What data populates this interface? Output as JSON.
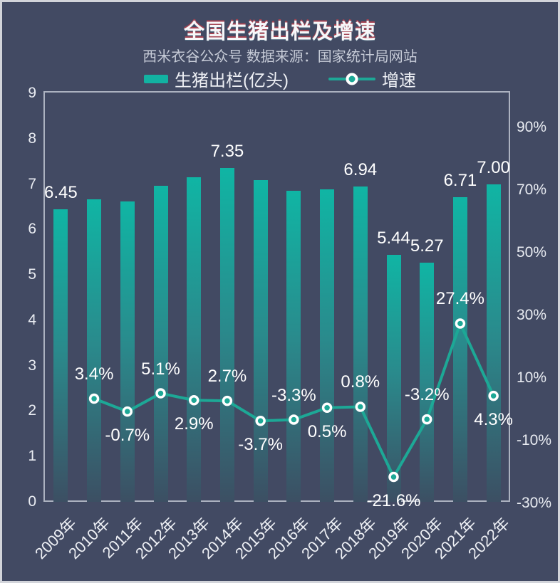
{
  "title": "全国生猪出栏及增速",
  "subtitle": "西米衣谷公众号 数据来源：国家统计局网站",
  "legend": {
    "bar_label": "生猪出栏(亿头)",
    "line_label": "增速"
  },
  "colors": {
    "background": "#424a63",
    "canvas_border": "#d2d4da",
    "plot_border": "#bec4d0",
    "bar_gradient_top": "#10b5a4",
    "bar_gradient_bottom": "#3c4f63",
    "line": "#1da896",
    "marker_fill": "#1da896",
    "marker_ring": "#ffffff",
    "title_text": "#f7f7f9",
    "subtitle_text": "#c6cbd7",
    "axis_text": "#e9ecf2",
    "value_label_text": "#ffffff"
  },
  "chart_data": {
    "type": "bar",
    "combo": "bar+line",
    "title": "全国生猪出栏及增速",
    "subtitle": "西米衣谷公众号 数据来源：国家统计局网站",
    "categories": [
      "2009年",
      "2010年",
      "2011年",
      "2012年",
      "2013年",
      "2014年",
      "2015年",
      "2016年",
      "2017年",
      "2018年",
      "2019年",
      "2020年",
      "2021年",
      "2022年"
    ],
    "series": [
      {
        "name": "生猪出栏(亿头)",
        "type": "bar",
        "axis": "left",
        "values": [
          6.45,
          6.67,
          6.62,
          6.96,
          7.15,
          7.35,
          7.08,
          6.85,
          6.88,
          6.94,
          5.44,
          5.27,
          6.71,
          7.0
        ],
        "shown_labels": [
          "6.45",
          "",
          "",
          "",
          "",
          "7.35",
          "",
          "",
          "",
          "6.94",
          "5.44",
          "5.27",
          "6.71",
          "7.00"
        ]
      },
      {
        "name": "增速",
        "type": "line",
        "axis": "right",
        "values": [
          null,
          3.4,
          -0.7,
          5.1,
          2.9,
          2.7,
          -3.7,
          -3.3,
          0.5,
          0.8,
          -21.6,
          -3.2,
          27.4,
          4.3
        ],
        "shown_labels": [
          "",
          "3.4%",
          "-0.7%",
          "5.1%",
          "2.9%",
          "2.7%",
          "-3.7%",
          "-3.3%",
          "0.5%",
          "0.8%",
          "-21.6%",
          "-3.2%",
          "27.4%",
          "4.3%"
        ],
        "label_placement": [
          "",
          "above",
          "below",
          "above",
          "below",
          "above",
          "below",
          "above",
          "below",
          "above",
          "below",
          "above",
          "above",
          "below"
        ]
      }
    ],
    "left_axis": {
      "range": [
        0,
        9
      ],
      "ticks": [
        0,
        1,
        2,
        3,
        4,
        5,
        6,
        7,
        8,
        9
      ]
    },
    "right_axis": {
      "range": [
        -30,
        100
      ],
      "ticks": [
        90,
        70,
        50,
        30,
        10,
        -10,
        -30
      ],
      "suffix": "%"
    },
    "legend_position": "top",
    "grid": false,
    "x_labels_rotated_deg": 45
  }
}
